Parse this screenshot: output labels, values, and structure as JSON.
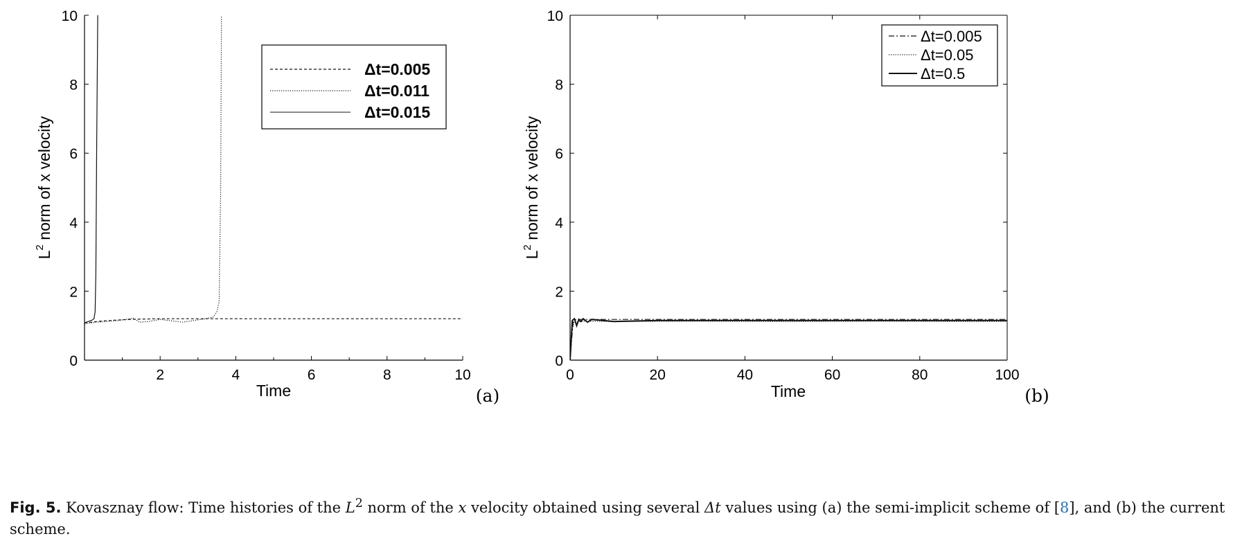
{
  "chart_data": [
    {
      "type": "line",
      "panel_label": "(a)",
      "xlabel": "Time",
      "ylabel_base": "L",
      "ylabel_sup": "2",
      "ylabel_rest": " norm of x velocity",
      "xlim": [
        0,
        10
      ],
      "ylim": [
        0,
        10
      ],
      "xticks": [
        2,
        4,
        6,
        8,
        10
      ],
      "yticks": [
        0,
        2,
        4,
        6,
        8,
        10
      ],
      "grid": false,
      "legend_position": "top-right",
      "series": [
        {
          "name": "Δt=0.005",
          "style": "dashed",
          "x": [
            0,
            0.5,
            1.0,
            1.5,
            2.0,
            3.0,
            4.0,
            6.0,
            8.0,
            10.0
          ],
          "y": [
            1.08,
            1.14,
            1.17,
            1.19,
            1.2,
            1.2,
            1.2,
            1.2,
            1.2,
            1.2
          ]
        },
        {
          "name": "Δt=0.011",
          "style": "dotted",
          "x": [
            0,
            0.3,
            0.6,
            0.9,
            1.2,
            1.3,
            1.45,
            1.7,
            2.0,
            2.3,
            2.6,
            2.9,
            3.2,
            3.4,
            3.5,
            3.56,
            3.6,
            3.62
          ],
          "y": [
            1.05,
            1.1,
            1.12,
            1.15,
            1.2,
            1.22,
            1.1,
            1.12,
            1.18,
            1.14,
            1.1,
            1.15,
            1.2,
            1.25,
            1.4,
            1.7,
            5.0,
            10.0
          ]
        },
        {
          "name": "Δt=0.015",
          "style": "solid",
          "x": [
            0,
            0.1,
            0.2,
            0.25,
            0.28,
            0.3,
            0.32,
            0.35
          ],
          "y": [
            1.08,
            1.12,
            1.16,
            1.2,
            1.4,
            2.5,
            6.0,
            10.0
          ]
        }
      ]
    },
    {
      "type": "line",
      "panel_label": "(b)",
      "xlabel": "Time",
      "ylabel_base": "L",
      "ylabel_sup": "2",
      "ylabel_rest": " norm of x velocity",
      "xlim": [
        0,
        100
      ],
      "ylim": [
        0,
        10
      ],
      "xticks": [
        0,
        20,
        40,
        60,
        80,
        100
      ],
      "yticks": [
        0,
        2,
        4,
        6,
        8,
        10
      ],
      "grid": false,
      "legend_position": "top-right",
      "series": [
        {
          "name": "Δt=0.005",
          "style": "dashdot",
          "x": [
            0,
            0.3,
            0.7,
            1.2,
            2,
            5,
            20,
            40,
            60,
            80,
            100
          ],
          "y": [
            0,
            0.5,
            1.1,
            1.17,
            1.18,
            1.18,
            1.18,
            1.18,
            1.18,
            1.18,
            1.18
          ]
        },
        {
          "name": "Δt=0.05",
          "style": "dotted",
          "x": [
            0,
            0.4,
            0.9,
            1.5,
            3,
            10,
            30,
            50,
            70,
            90,
            100
          ],
          "y": [
            0,
            0.8,
            1.12,
            1.1,
            1.13,
            1.12,
            1.13,
            1.12,
            1.13,
            1.12,
            1.12
          ]
        },
        {
          "name": "Δt=0.5",
          "style": "solid",
          "x": [
            0,
            0.5,
            1.0,
            1.5,
            2,
            2.5,
            3,
            4,
            5,
            10,
            20,
            40,
            60,
            80,
            100
          ],
          "y": [
            0,
            1.15,
            1.2,
            1.0,
            1.18,
            1.12,
            1.2,
            1.1,
            1.18,
            1.12,
            1.15,
            1.15,
            1.15,
            1.15,
            1.15
          ]
        }
      ]
    }
  ],
  "caption": {
    "label": "Fig. 5.",
    "text_1": " Kovasznay flow: Time histories of the ",
    "math_L": "L",
    "math_sup": "2",
    "text_2": " norm of the ",
    "math_x": "x",
    "text_3": " velocity obtained using several ",
    "math_dt": "Δt",
    "text_4": " values using (a) the semi-implicit scheme of [",
    "ref": "8",
    "text_5": "], and (b) the current scheme."
  }
}
